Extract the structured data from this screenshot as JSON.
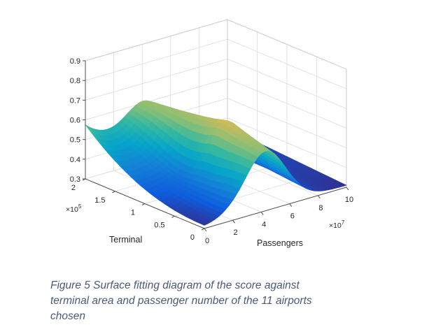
{
  "chart_data": {
    "type": "surface",
    "x": {
      "label": "Passengers",
      "range": [
        0,
        10
      ],
      "scale_exponent_label": "×10",
      "scale_exponent_power": "7",
      "ticks": [
        "0",
        "2",
        "4",
        "6",
        "8",
        "10"
      ]
    },
    "y": {
      "label": "Terminal",
      "range": [
        0,
        2
      ],
      "scale_exponent_label": "×10",
      "scale_exponent_power": "5",
      "ticks": [
        "0",
        "0.5",
        "1",
        "1.5",
        "2"
      ]
    },
    "z": {
      "label": "",
      "range": [
        0.3,
        0.9
      ],
      "ticks": [
        "0.3",
        "0.4",
        "0.5",
        "0.6",
        "0.7",
        "0.8",
        "0.9"
      ]
    },
    "grid": true,
    "colormap": "parula",
    "colormap_stops": [
      "#352a87",
      "#0f5cdd",
      "#1481d6",
      "#06a4ca",
      "#2eb7a4",
      "#87bf77",
      "#d1bb59",
      "#fec832",
      "#f9fb0e"
    ],
    "view": "3d-perspective"
  },
  "caption": {
    "lines": [
      "Figure 5 Surface fitting diagram of the score against",
      "terminal area and passenger number of the 11 airports",
      "chosen"
    ]
  }
}
